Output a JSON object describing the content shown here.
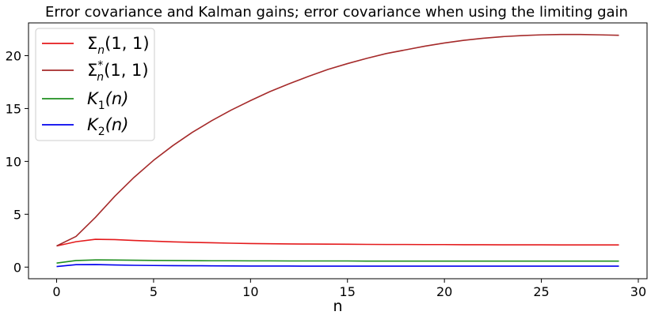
{
  "chart_data": {
    "type": "line",
    "title": "Error covariance and Kalman gains; error covariance when using the limiting gain",
    "xlabel": "n",
    "ylabel": "",
    "xlim": [
      -1.45,
      30.45
    ],
    "ylim": [
      -1.1,
      23.1
    ],
    "xticks": [
      0,
      5,
      10,
      15,
      20,
      25,
      30
    ],
    "yticks": [
      0,
      5,
      10,
      15,
      20
    ],
    "x": [
      0,
      1,
      2,
      3,
      4,
      5,
      6,
      7,
      8,
      9,
      10,
      11,
      12,
      13,
      14,
      15,
      16,
      17,
      18,
      19,
      20,
      21,
      22,
      23,
      24,
      25,
      26,
      27,
      28,
      29
    ],
    "legend_position": "upper-left",
    "grid": false,
    "series": [
      {
        "name": "Σn(1, 1)",
        "legend": {
          "base": "Σ",
          "sub": "n",
          "sup": "",
          "args": "(1, 1)"
        },
        "color": "#e41a1c",
        "values": [
          2.0,
          2.4,
          2.63,
          2.6,
          2.52,
          2.45,
          2.39,
          2.34,
          2.3,
          2.26,
          2.23,
          2.21,
          2.19,
          2.18,
          2.17,
          2.16,
          2.15,
          2.14,
          2.14,
          2.13,
          2.13,
          2.12,
          2.12,
          2.11,
          2.11,
          2.11,
          2.1,
          2.1,
          2.1,
          2.1
        ]
      },
      {
        "name": "Σ*n(1, 1)",
        "legend": {
          "base": "Σ",
          "sub": "n",
          "sup": "*",
          "args": "(1, 1)"
        },
        "color": "#a52a2a",
        "values": [
          2.0,
          2.9,
          4.7,
          6.7,
          8.5,
          10.1,
          11.5,
          12.75,
          13.85,
          14.85,
          15.75,
          16.6,
          17.35,
          18.05,
          18.7,
          19.25,
          19.75,
          20.2,
          20.55,
          20.9,
          21.2,
          21.45,
          21.65,
          21.8,
          21.9,
          21.97,
          22.0,
          22.0,
          21.97,
          21.93
        ]
      },
      {
        "name": "K1(n)",
        "legend": {
          "base": "K",
          "sub": "1",
          "sup": "",
          "args": "(n)"
        },
        "color": "#1f8f1f",
        "values": [
          0.38,
          0.62,
          0.68,
          0.67,
          0.65,
          0.63,
          0.62,
          0.61,
          0.6,
          0.6,
          0.59,
          0.59,
          0.58,
          0.58,
          0.58,
          0.58,
          0.57,
          0.57,
          0.57,
          0.57,
          0.57,
          0.57,
          0.57,
          0.57,
          0.57,
          0.57,
          0.57,
          0.57,
          0.57,
          0.57
        ]
      },
      {
        "name": "K2(n)",
        "legend": {
          "base": "K",
          "sub": "2",
          "sup": "",
          "args": "(n)"
        },
        "color": "#0000ee",
        "values": [
          0.05,
          0.23,
          0.24,
          0.2,
          0.17,
          0.15,
          0.14,
          0.13,
          0.12,
          0.11,
          0.1,
          0.1,
          0.1,
          0.09,
          0.09,
          0.09,
          0.09,
          0.09,
          0.09,
          0.09,
          0.09,
          0.09,
          0.09,
          0.09,
          0.09,
          0.09,
          0.09,
          0.09,
          0.09,
          0.09
        ]
      }
    ]
  }
}
